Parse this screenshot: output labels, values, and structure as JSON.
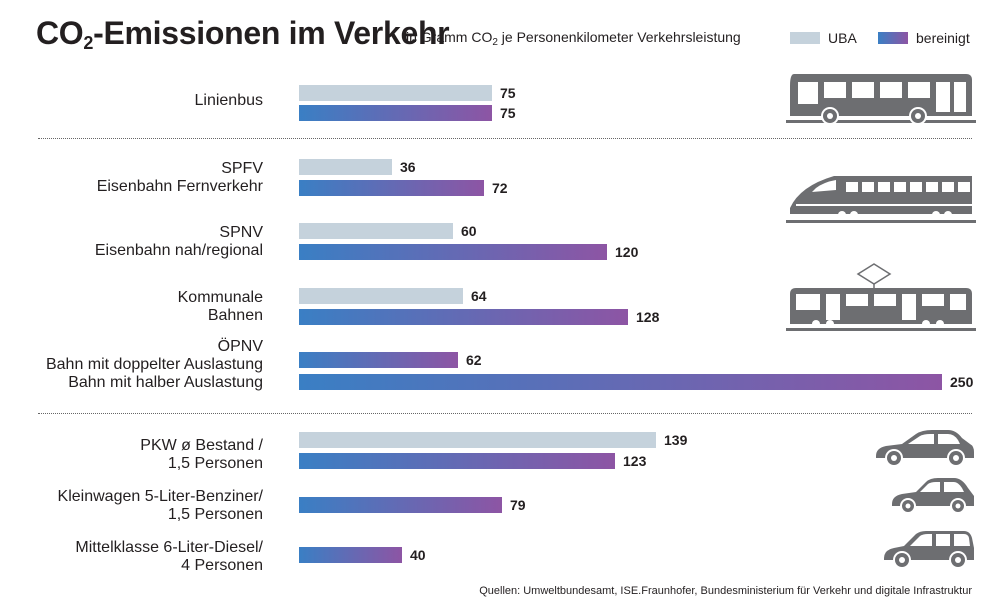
{
  "title_main": "CO",
  "title_sub": "2",
  "title_rest": "-Emissionen im Verkehr",
  "subtitle_pre": "in Gramm CO",
  "subtitle_sub": "2",
  "subtitle_post": " je Personenkilometer Verkehrsleistung",
  "colors": {
    "uba": "#c5d2dc",
    "bereinigt_start": "#3a7fc4",
    "bereinigt_end": "#8d55a4",
    "icon": "#6d6e71"
  },
  "source": "Quellen: Umweltbundesamt, ISE.Fraunhofer, Bundesministerium für Verkehr und digitale Infrastruktur",
  "chart_data": {
    "type": "bar",
    "orientation": "horizontal",
    "series": [
      {
        "name": "UBA",
        "color": "#c5d2dc"
      },
      {
        "name": "bereinigt",
        "color": "gradient #3a7fc4 → #8d55a4"
      }
    ],
    "legend_position": "top-right",
    "categories": [
      {
        "label": [
          "Linienbus"
        ],
        "values": {
          "UBA": 75,
          "bereinigt": 75
        }
      },
      {
        "label": [
          "SPFV",
          "Eisenbahn Fernverkehr"
        ],
        "values": {
          "UBA": 36,
          "bereinigt": 72
        }
      },
      {
        "label": [
          "SPNV",
          "Eisenbahn nah/regional"
        ],
        "values": {
          "UBA": 60,
          "bereinigt": 120
        }
      },
      {
        "label": [
          "Kommunale",
          "Bahnen"
        ],
        "values": {
          "UBA": 64,
          "bereinigt": 128
        }
      },
      {
        "label": [
          "ÖPNV",
          "Bahn mit doppelter Auslastung",
          "Bahn mit halber Auslastung"
        ],
        "values": {
          "Bahn mit doppelter Auslastung": 62,
          "Bahn mit halber Auslastung": 250
        }
      },
      {
        "label": [
          "PKW ø Bestand /",
          "1,5 Personen"
        ],
        "values": {
          "UBA": 139,
          "bereinigt": 123
        }
      },
      {
        "label": [
          "Kleinwagen 5-Liter-Benziner/",
          "1,5 Personen"
        ],
        "values": {
          "bereinigt": 79
        }
      },
      {
        "label": [
          "Mittelklasse 6-Liter-Diesel/",
          "4 Personen"
        ],
        "values": {
          "bereinigt": 40
        }
      }
    ],
    "xlim": [
      0,
      250
    ]
  },
  "bars": [
    {
      "value": 75,
      "label": "75",
      "style": "uba"
    },
    {
      "value": 75,
      "label": "75",
      "style": "grad"
    },
    {
      "value": 36,
      "label": "36",
      "style": "uba"
    },
    {
      "value": 72,
      "label": "72",
      "style": "grad"
    },
    {
      "value": 60,
      "label": "60",
      "style": "uba"
    },
    {
      "value": 120,
      "label": "120",
      "style": "grad"
    },
    {
      "value": 64,
      "label": "64",
      "style": "uba"
    },
    {
      "value": 128,
      "label": "128",
      "style": "grad"
    },
    {
      "value": 62,
      "label": "62",
      "style": "grad"
    },
    {
      "value": 250,
      "label": "250",
      "style": "grad"
    },
    {
      "value": 139,
      "label": "139",
      "style": "uba"
    },
    {
      "value": 123,
      "label": "123",
      "style": "grad"
    },
    {
      "value": 79,
      "label": "79",
      "style": "grad"
    },
    {
      "value": 40,
      "label": "40",
      "style": "grad"
    }
  ],
  "labels": {
    "linienbus": [
      "Linienbus"
    ],
    "spfv": [
      "SPFV",
      "Eisenbahn Fernverkehr"
    ],
    "spnv": [
      "SPNV",
      "Eisenbahn nah/regional"
    ],
    "kommunal": [
      "Kommunale",
      "Bahnen"
    ],
    "oepnv": [
      "ÖPNV",
      "Bahn mit doppelter Auslastung",
      "Bahn mit halber Auslastung"
    ],
    "pkw": [
      "PKW ø Bestand /",
      "1,5 Personen"
    ],
    "kleinwagen": [
      "Kleinwagen 5-Liter-Benziner/",
      "1,5 Personen"
    ],
    "mittelklasse": [
      "Mittelklasse 6-Liter-Diesel/",
      "4 Personen"
    ]
  },
  "legend": {
    "uba": "UBA",
    "bereinigt": "bereinigt"
  },
  "icons": [
    "bus-icon",
    "train-icon",
    "tram-icon",
    "sedan-icon",
    "small-car-icon",
    "station-wagon-icon"
  ]
}
